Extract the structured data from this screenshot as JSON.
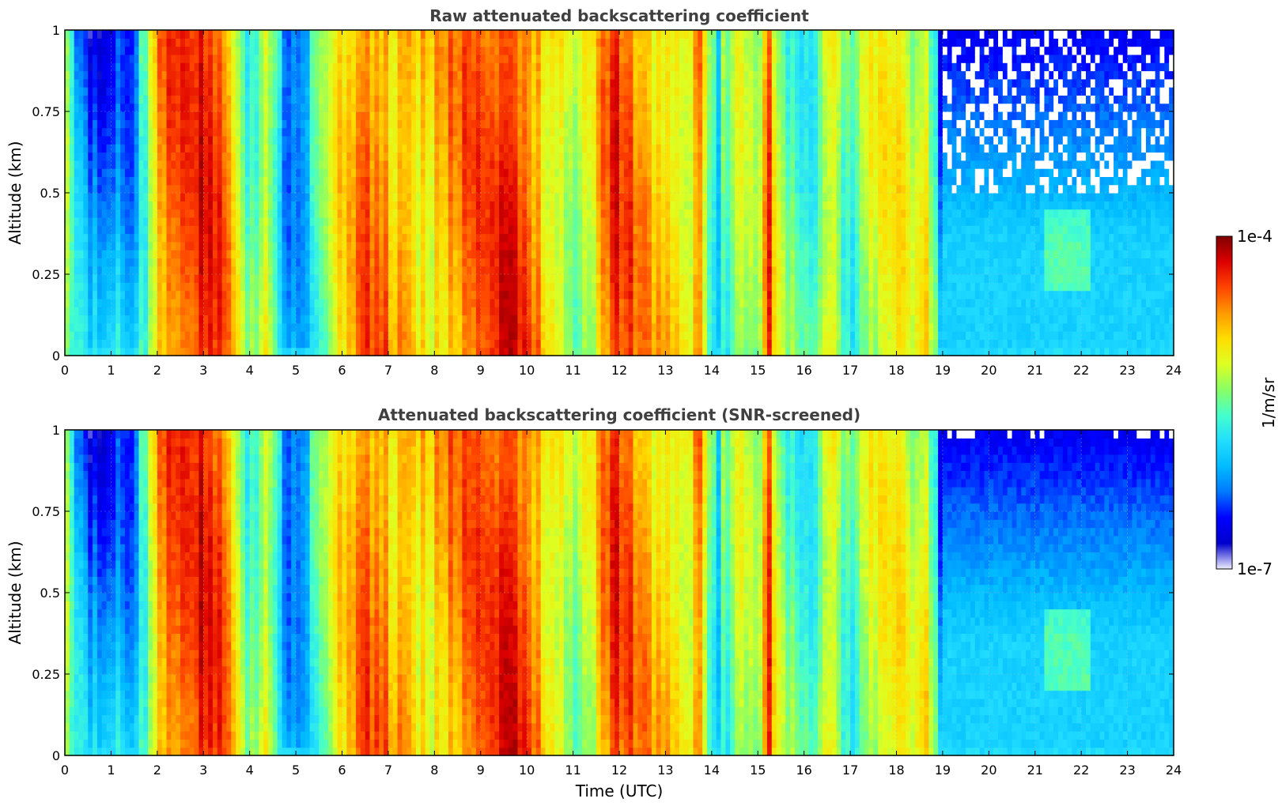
{
  "chart_data": [
    {
      "type": "heatmap",
      "title": "Raw attenuated backscattering coefficient",
      "xlabel": "",
      "ylabel": "Altitude (km)",
      "xlim": [
        0,
        24
      ],
      "ylim": [
        0,
        1
      ],
      "x_ticks": [
        "0",
        "1",
        "2",
        "3",
        "4",
        "5",
        "6",
        "7",
        "8",
        "9",
        "10",
        "11",
        "12",
        "13",
        "14",
        "15",
        "16",
        "17",
        "18",
        "19",
        "20",
        "21",
        "22",
        "23",
        "24"
      ],
      "y_ticks": [
        "0",
        "0.25",
        "0.5",
        "0.75",
        "1"
      ],
      "grid": true,
      "colorscale": "jet",
      "noise_sparkle_above_km": 0.5
    },
    {
      "type": "heatmap",
      "title": "Attenuated backscattering coefficient (SNR-screened)",
      "xlabel": "Time (UTC)",
      "ylabel": "Altitude (km)",
      "xlim": [
        0,
        24
      ],
      "ylim": [
        0,
        1
      ],
      "x_ticks": [
        "0",
        "1",
        "2",
        "3",
        "4",
        "5",
        "6",
        "7",
        "8",
        "9",
        "10",
        "11",
        "12",
        "13",
        "14",
        "15",
        "16",
        "17",
        "18",
        "19",
        "20",
        "21",
        "22",
        "23",
        "24"
      ],
      "y_ticks": [
        "0",
        "0.25",
        "0.5",
        "0.75",
        "1"
      ],
      "grid": true,
      "colorscale": "jet",
      "noise_sparkle_above_km": 0.97
    }
  ],
  "colorbar": {
    "max_label": "1e-4",
    "min_label": "1e-7",
    "label": "1/m/sr",
    "scale": "log",
    "range": [
      1e-07,
      0.0001
    ],
    "colors": [
      "#eeeeff",
      "#0000cc",
      "#0000ff",
      "#0077ff",
      "#00bbff",
      "#22ddff",
      "#44ffcc",
      "#88ff66",
      "#ddff22",
      "#ffdd00",
      "#ff9900",
      "#ff4400",
      "#dd0000",
      "#800000"
    ]
  },
  "profile": {
    "time_utc": [
      0,
      0.2,
      0.5,
      0.8,
      1.0,
      1.3,
      1.6,
      1.9,
      2.1,
      2.4,
      2.8,
      3.2,
      3.6,
      3.9,
      4.1,
      4.4,
      4.7,
      5.0,
      5.3,
      5.6,
      5.8,
      6.1,
      6.5,
      7.0,
      7.5,
      7.9,
      8.3,
      8.7,
      9.1,
      9.6,
      10.1,
      10.5,
      10.8,
      11.0,
      11.3,
      11.6,
      12.0,
      12.4,
      12.8,
      13.1,
      13.4,
      13.7,
      13.9,
      14.1,
      14.4,
      14.7,
      15.0,
      15.2,
      15.4,
      15.7,
      16.0,
      16.3,
      16.5,
      16.8,
      17.1,
      17.4,
      17.7,
      18.0,
      18.3,
      18.6,
      18.9,
      19.3,
      19.7,
      20.0,
      20.3,
      20.7,
      21.2,
      21.6,
      22.0,
      22.5,
      23.0,
      23.5,
      23.9
    ],
    "intensity_0_to_1": [
      0.55,
      0.45,
      0.3,
      0.28,
      0.4,
      0.32,
      0.45,
      0.62,
      0.78,
      0.82,
      0.84,
      0.86,
      0.7,
      0.45,
      0.55,
      0.62,
      0.4,
      0.35,
      0.42,
      0.48,
      0.55,
      0.7,
      0.78,
      0.76,
      0.72,
      0.7,
      0.74,
      0.78,
      0.82,
      0.86,
      0.82,
      0.7,
      0.66,
      0.55,
      0.6,
      0.72,
      0.84,
      0.76,
      0.68,
      0.72,
      0.6,
      0.82,
      0.6,
      0.42,
      0.5,
      0.55,
      0.45,
      0.88,
      0.6,
      0.5,
      0.44,
      0.48,
      0.72,
      0.55,
      0.48,
      0.62,
      0.6,
      0.62,
      0.58,
      0.66,
      0.38,
      0.3,
      0.32,
      0.4,
      0.32,
      0.3,
      0.3,
      0.34,
      0.3,
      0.3,
      0.3,
      0.3,
      0.3
    ]
  }
}
